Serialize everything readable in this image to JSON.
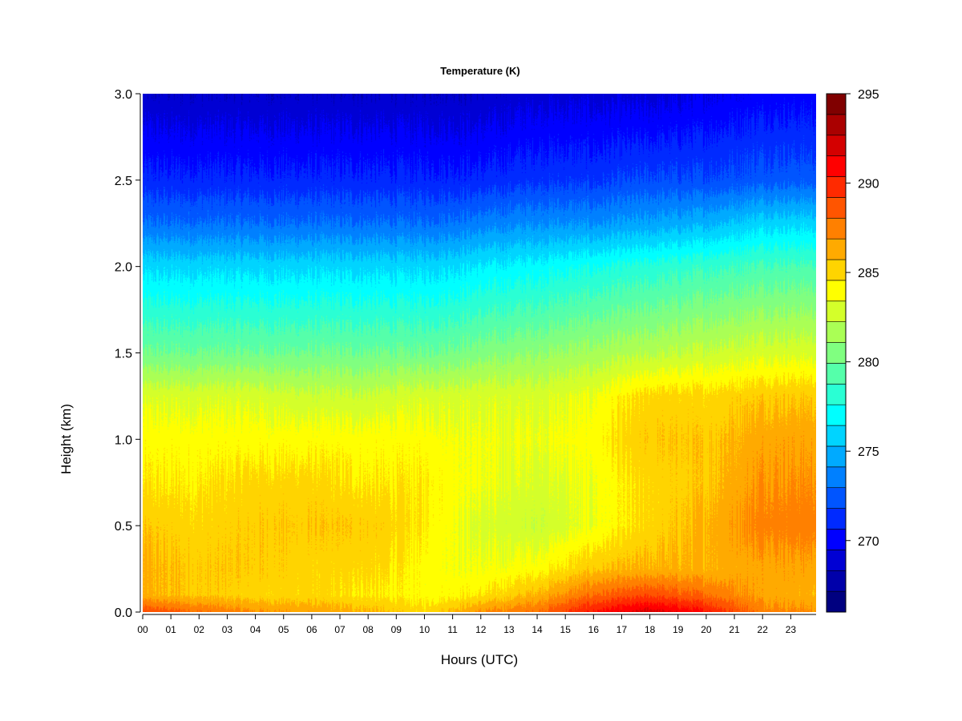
{
  "chart_data": {
    "type": "heatmap",
    "title": "Temperature (K)",
    "xlabel": "Hours (UTC)",
    "ylabel": "Height (km)",
    "x_ticks": [
      "00",
      "01",
      "02",
      "03",
      "04",
      "05",
      "06",
      "07",
      "08",
      "09",
      "10",
      "11",
      "12",
      "13",
      "14",
      "15",
      "16",
      "17",
      "18",
      "19",
      "20",
      "21",
      "22",
      "23"
    ],
    "y_ticks": [
      "0.0",
      "0.5",
      "1.0",
      "1.5",
      "2.0",
      "2.5",
      "3.0"
    ],
    "xlim": [
      0,
      23.9
    ],
    "ylim": [
      0,
      3.0
    ],
    "colorbar": {
      "min": 266,
      "max": 295,
      "step": 1,
      "ticks": [
        "270",
        "275",
        "280",
        "285",
        "290",
        "295"
      ],
      "colors": [
        "#000080",
        "#0000AA",
        "#0000D4",
        "#0000FF",
        "#002AFF",
        "#0055FF",
        "#0080FF",
        "#00AAFF",
        "#00D4FF",
        "#00FFFF",
        "#2AFFD4",
        "#55FFAA",
        "#80FF80",
        "#AAFF55",
        "#D4FF2A",
        "#FFFF00",
        "#FFD400",
        "#FFAA00",
        "#FF8000",
        "#FF5500",
        "#FF2A00",
        "#FF0000",
        "#D40000",
        "#AA0000",
        "#800000"
      ]
    },
    "grid_hours": [
      0,
      2,
      4,
      6,
      8,
      10,
      12,
      14,
      16,
      18,
      20,
      22,
      23.9
    ],
    "grid_heights": [
      0.0,
      0.1,
      0.25,
      0.5,
      0.75,
      1.0,
      1.25,
      1.5,
      1.75,
      2.0,
      2.25,
      2.5,
      3.0
    ],
    "values": [
      [
        289.0,
        288.0,
        287.0,
        286.5,
        286.0,
        285.0,
        287.0,
        288.0,
        290.5,
        292.0,
        290.5,
        287.5,
        287.0
      ],
      [
        286.0,
        285.5,
        285.0,
        285.0,
        284.5,
        284.0,
        284.5,
        286.0,
        288.0,
        289.0,
        288.0,
        286.5,
        286.0
      ],
      [
        286.0,
        285.5,
        285.5,
        285.0,
        285.0,
        284.0,
        283.5,
        284.0,
        285.5,
        286.0,
        286.0,
        286.5,
        286.5
      ],
      [
        285.5,
        285.0,
        285.5,
        285.5,
        285.5,
        284.5,
        283.0,
        282.5,
        283.5,
        285.0,
        286.0,
        287.5,
        287.5
      ],
      [
        284.5,
        284.5,
        285.0,
        285.0,
        284.5,
        284.5,
        283.5,
        283.0,
        283.5,
        285.0,
        285.5,
        287.0,
        287.0
      ],
      [
        284.0,
        284.0,
        284.0,
        284.0,
        284.0,
        284.0,
        283.5,
        283.5,
        284.0,
        285.5,
        285.5,
        286.5,
        286.5
      ],
      [
        283.0,
        283.0,
        283.0,
        282.5,
        282.5,
        283.0,
        283.0,
        283.0,
        283.5,
        285.0,
        285.0,
        285.5,
        285.5
      ],
      [
        280.0,
        280.0,
        280.0,
        280.0,
        280.0,
        280.0,
        280.5,
        281.0,
        281.5,
        282.0,
        282.5,
        283.0,
        283.0
      ],
      [
        278.0,
        278.0,
        278.0,
        278.0,
        278.0,
        278.0,
        278.5,
        279.0,
        279.5,
        280.0,
        280.5,
        281.0,
        281.0
      ],
      [
        276.0,
        276.0,
        276.0,
        276.0,
        276.0,
        276.0,
        276.5,
        277.0,
        277.5,
        278.0,
        278.5,
        279.0,
        279.0
      ],
      [
        273.0,
        273.0,
        273.0,
        273.0,
        273.0,
        273.0,
        273.5,
        274.0,
        274.0,
        274.5,
        275.0,
        276.0,
        276.0
      ],
      [
        271.0,
        271.0,
        271.0,
        271.0,
        271.0,
        271.0,
        271.0,
        271.5,
        271.5,
        272.0,
        272.0,
        272.5,
        272.5
      ],
      [
        268.5,
        268.5,
        268.5,
        268.5,
        268.5,
        268.5,
        268.5,
        269.0,
        269.0,
        269.0,
        269.5,
        270.0,
        270.0
      ]
    ]
  }
}
